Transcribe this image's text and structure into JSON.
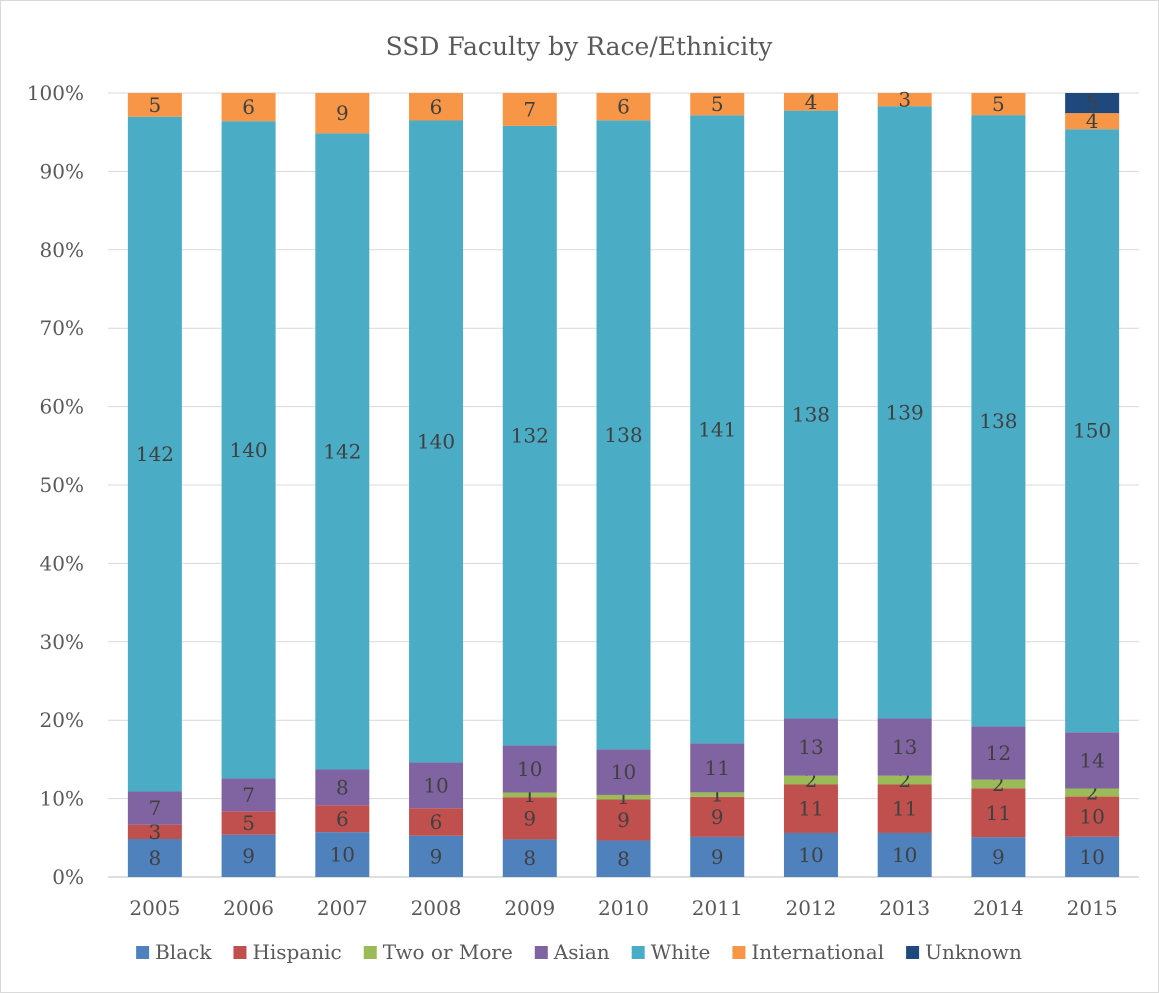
{
  "chart_data": {
    "type": "bar",
    "stacked": "percent",
    "title": "SSD Faculty by Race/Ethnicity",
    "xlabel": "",
    "ylabel": "",
    "categories": [
      "2005",
      "2006",
      "2007",
      "2008",
      "2009",
      "2010",
      "2011",
      "2012",
      "2013",
      "2014",
      "2015"
    ],
    "y_ticks": [
      "0%",
      "10%",
      "20%",
      "30%",
      "40%",
      "50%",
      "60%",
      "70%",
      "80%",
      "90%",
      "100%"
    ],
    "ylim": [
      0,
      100
    ],
    "grid": true,
    "legend_position": "bottom",
    "series": [
      {
        "name": "Black",
        "color": "#4f81bd",
        "values": [
          8,
          9,
          10,
          9,
          8,
          8,
          9,
          10,
          10,
          9,
          10
        ]
      },
      {
        "name": "Hispanic",
        "color": "#c0504d",
        "values": [
          3,
          5,
          6,
          6,
          9,
          9,
          9,
          11,
          11,
          11,
          10
        ]
      },
      {
        "name": "Two or More",
        "color": "#9bbb59",
        "values": [
          0,
          0,
          0,
          0,
          1,
          1,
          1,
          2,
          2,
          2,
          2
        ]
      },
      {
        "name": "Asian",
        "color": "#8064a2",
        "values": [
          7,
          7,
          8,
          10,
          10,
          10,
          11,
          13,
          13,
          12,
          14
        ]
      },
      {
        "name": "White",
        "color": "#4bacc6",
        "values": [
          142,
          140,
          142,
          140,
          132,
          138,
          141,
          138,
          139,
          138,
          150
        ]
      },
      {
        "name": "International",
        "color": "#f79646",
        "values": [
          5,
          6,
          9,
          6,
          7,
          6,
          5,
          4,
          3,
          5,
          4
        ]
      },
      {
        "name": "Unknown",
        "color": "#1f497d",
        "values": [
          0,
          0,
          0,
          0,
          0,
          0,
          0,
          0,
          0,
          0,
          5
        ]
      }
    ]
  }
}
